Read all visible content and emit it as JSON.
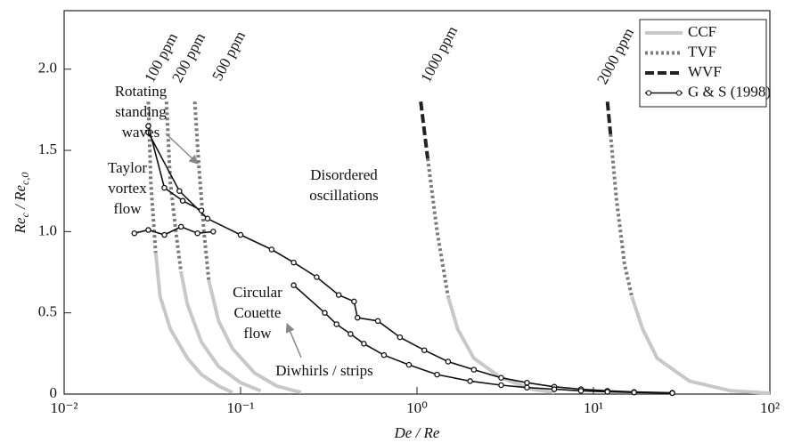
{
  "chart_data": {
    "type": "line",
    "xlabel": "De / Re",
    "ylabel": [
      "Re",
      "c",
      " / Re",
      "c,0"
    ],
    "xscale": "log",
    "xlim": [
      0.01,
      100
    ],
    "xticks": [
      {
        "value": 0.01,
        "label": "10⁻²"
      },
      {
        "value": 0.1,
        "label": "10⁻¹"
      },
      {
        "value": 1,
        "label": "10⁰"
      },
      {
        "value": 10,
        "label": "10¹"
      },
      {
        "value": 100,
        "label": "10²"
      }
    ],
    "ylim": [
      0,
      2.36
    ],
    "yticks": [
      0,
      0.5,
      {
        "value": 1.0,
        "label": "1.0"
      },
      1.5,
      {
        "value": 2.0,
        "label": "2.0"
      }
    ],
    "legend": "upper right",
    "series": [
      {
        "name": "CCF",
        "color": "#c8c8c8",
        "style": "solid",
        "x": [
          0.033,
          0.035,
          0.04,
          0.05,
          0.06,
          0.075,
          0.09,
          null,
          0.046,
          0.05,
          0.06,
          0.075,
          0.1,
          0.13,
          null,
          0.066,
          0.075,
          0.09,
          0.12,
          0.16,
          0.22,
          null,
          1.5,
          1.7,
          2.1,
          3,
          4.5,
          6,
          null,
          16.5,
          19,
          23,
          35,
          60,
          100
        ],
        "values": [
          0.87,
          0.6,
          0.4,
          0.22,
          0.12,
          0.05,
          0.01,
          null,
          0.75,
          0.55,
          0.32,
          0.17,
          0.07,
          0.02,
          null,
          0.7,
          0.45,
          0.28,
          0.13,
          0.05,
          0.01,
          null,
          0.6,
          0.4,
          0.22,
          0.1,
          0.03,
          0.01,
          null,
          0.6,
          0.4,
          0.22,
          0.08,
          0.02,
          0.005
        ]
      },
      {
        "name": "TVF",
        "color": "#7a7a7a",
        "style": "dotted",
        "x": [
          0.03,
          0.031,
          0.033,
          null,
          0.038,
          0.04,
          0.043,
          0.046,
          null,
          0.055,
          0.058,
          0.062,
          0.066,
          null,
          1.15,
          1.3,
          1.5,
          null,
          12.5,
          13.5,
          15,
          16.5
        ],
        "values": [
          1.8,
          1.3,
          0.87,
          null,
          1.8,
          1.3,
          1.0,
          0.75,
          null,
          1.8,
          1.4,
          1.0,
          0.7,
          null,
          1.45,
          1.0,
          0.6,
          null,
          1.6,
          1.2,
          0.8,
          0.6
        ]
      },
      {
        "name": "WVF",
        "color": "#222222",
        "style": "dashed",
        "x": [
          1.05,
          1.15,
          null,
          12,
          12.5
        ],
        "values": [
          1.8,
          1.45,
          null,
          1.8,
          1.6
        ]
      },
      {
        "name": "G & S (1998)",
        "color": "#111111",
        "style": "solid",
        "marker": "circle",
        "x": [
          0.03,
          0.037,
          0.047,
          0.06,
          null,
          0.03,
          0.045,
          0.065,
          0.1,
          0.15,
          0.2,
          0.27,
          0.36,
          0.44,
          0.46,
          0.6,
          0.8,
          1.1,
          1.5,
          2.1,
          3,
          4.2,
          6,
          8.5,
          12,
          17,
          28,
          null,
          0.2,
          0.3,
          0.35,
          0.42,
          0.5,
          0.65,
          0.9,
          1.3,
          2,
          3,
          4.2,
          6,
          8.5,
          12,
          17,
          28,
          null,
          0.025,
          0.03,
          0.037,
          0.046,
          0.057,
          0.07
        ],
        "values": [
          1.65,
          1.27,
          1.19,
          1.13,
          null,
          1.61,
          1.25,
          1.08,
          0.98,
          0.89,
          0.81,
          0.72,
          0.61,
          0.57,
          0.47,
          0.45,
          0.35,
          0.27,
          0.2,
          0.15,
          0.1,
          0.07,
          0.045,
          0.03,
          0.02,
          0.013,
          0.008,
          null,
          0.67,
          0.5,
          0.43,
          0.37,
          0.31,
          0.24,
          0.18,
          0.12,
          0.08,
          0.055,
          0.04,
          0.03,
          0.02,
          0.014,
          0.01,
          0.006,
          null,
          0.99,
          1.01,
          0.98,
          1.03,
          0.99,
          1.0
        ]
      }
    ],
    "concentration_labels": [
      "100 ppm",
      "200 ppm",
      "500 ppm",
      "1000 ppm",
      "2000 ppm"
    ],
    "annotations": [
      [
        "Rotating",
        "standing",
        "waves"
      ],
      [
        "Taylor",
        "vortex",
        "flow"
      ],
      [
        "Disordered",
        "oscillations"
      ],
      [
        "Circular",
        "Couette",
        "flow"
      ],
      [
        "Diwhirls / strips"
      ]
    ]
  }
}
